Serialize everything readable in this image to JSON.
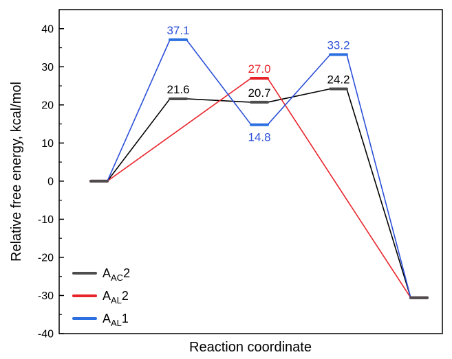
{
  "chart_data": {
    "type": "line",
    "title": "",
    "xlabel": "Reaction coordinate",
    "ylabel": "Relative free energy, kcal/mol",
    "ylim": [
      -40,
      45
    ],
    "yticks": [
      -40,
      -30,
      -20,
      -10,
      0,
      10,
      20,
      30,
      40
    ],
    "grid": false,
    "legend_position": "bottom-left",
    "series": [
      {
        "name": "AAC2",
        "name_base": "A",
        "name_sub": "AC",
        "name_tail": "2",
        "color": "#000000",
        "bar_color": "#4d4d4d",
        "points": [
          {
            "x": 1,
            "y": 0
          },
          {
            "x": 2,
            "y": 21.6,
            "label": "21.6"
          },
          {
            "x": 3,
            "y": 20.7,
            "label": "20.7"
          },
          {
            "x": 4,
            "y": 24.2,
            "label": "24.2"
          },
          {
            "x": 5,
            "y": -30.6
          }
        ]
      },
      {
        "name": "AAL2",
        "name_base": "A",
        "name_sub": "AL",
        "name_tail": "2",
        "color": "#e8232a",
        "bar_color": "#e8232a",
        "points": [
          {
            "x": 1,
            "y": 0
          },
          {
            "x": 3,
            "y": 27.0,
            "label": "27.0"
          },
          {
            "x": 5,
            "y": -30.6
          }
        ]
      },
      {
        "name": "AAL1",
        "name_base": "A",
        "name_sub": "AL",
        "name_tail": "1",
        "color": "#2b4fd8",
        "bar_color": "#2b6fe0",
        "points": [
          {
            "x": 1,
            "y": 0
          },
          {
            "x": 2,
            "y": 37.1,
            "label": "37.1"
          },
          {
            "x": 3,
            "y": 14.8,
            "label": "14.8"
          },
          {
            "x": 4,
            "y": 33.2,
            "label": "33.2"
          },
          {
            "x": 5,
            "y": -30.6
          }
        ]
      }
    ]
  }
}
